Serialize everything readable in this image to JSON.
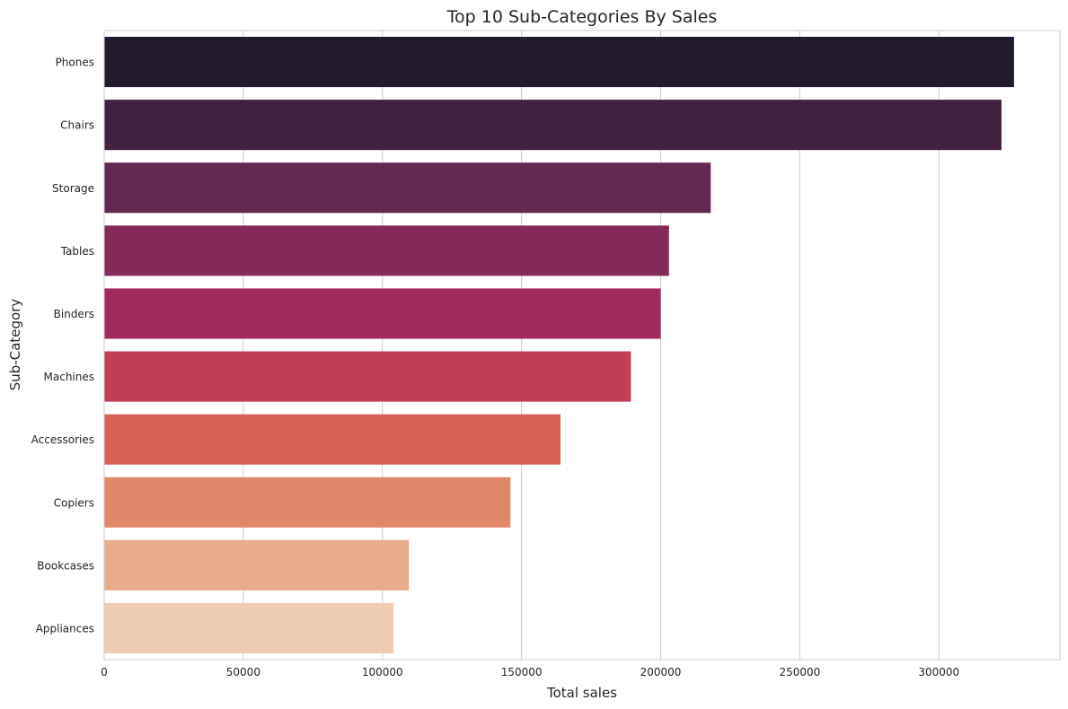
{
  "chart_data": {
    "type": "bar",
    "orientation": "horizontal",
    "title": "Top 10 Sub-Categories By Sales",
    "xlabel": "Total sales",
    "ylabel": "Sub-Category",
    "categories": [
      "Phones",
      "Chairs",
      "Storage",
      "Tables",
      "Binders",
      "Machines",
      "Accessories",
      "Copiers",
      "Bookcases",
      "Appliances"
    ],
    "values": [
      327000,
      322500,
      218000,
      203000,
      200000,
      189300,
      164000,
      146000,
      109500,
      104000
    ],
    "colors": [
      "#231a2f",
      "#42203f",
      "#622850",
      "#832a5a",
      "#a2295b",
      "#c13e56",
      "#d66154",
      "#e2886a",
      "#e8ac8a",
      "#eecbb3"
    ],
    "xlim": [
      0,
      343500
    ],
    "xticks": [
      0,
      50000,
      100000,
      150000,
      200000,
      250000,
      300000
    ],
    "grid": "x"
  }
}
